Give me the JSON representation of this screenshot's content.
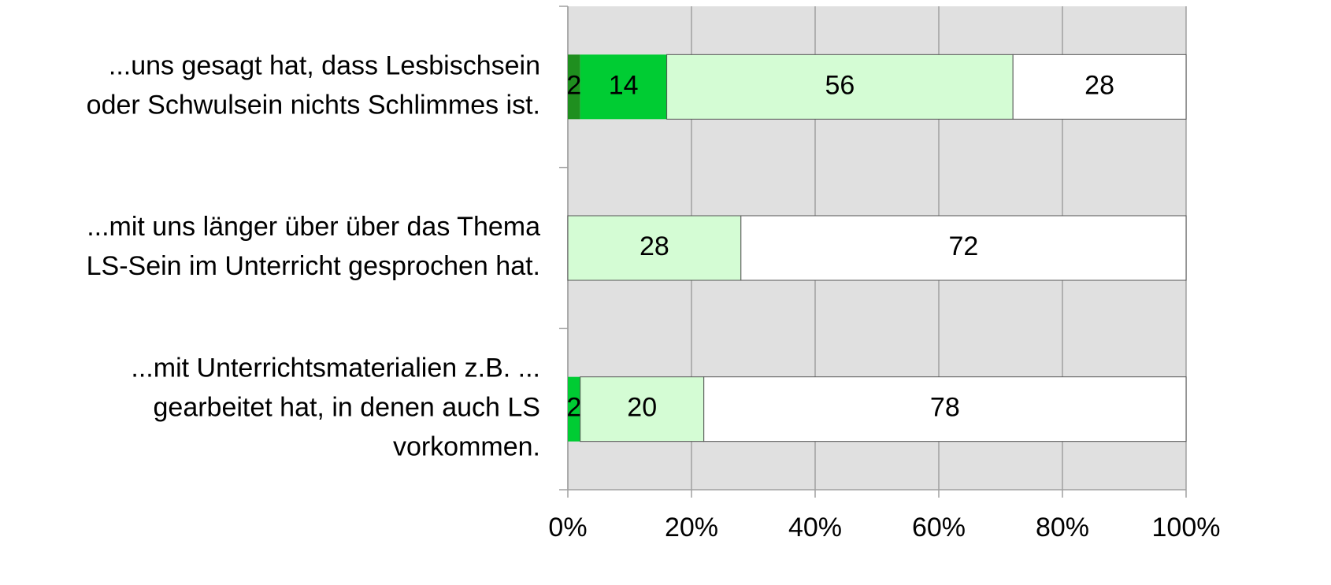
{
  "chart_data": {
    "type": "stacked_barh",
    "categories": [
      "...uns gesagt hat, dass Lesbischsein\noder Schwulsein nichts Schlimmes ist.",
      "...mit uns länger über über das Thema\nLS-Sein im Unterricht gesprochen hat.",
      "...mit Unterrichtsmaterialien z.B. ...\ngearbeitet hat, in denen auch LS\nvorkommen."
    ],
    "series": [
      {
        "color": "#1f8f1f",
        "values": [
          2,
          0,
          0
        ]
      },
      {
        "color": "#00cc33",
        "values": [
          14,
          0,
          2
        ]
      },
      {
        "color": "#d4fcd4",
        "values": [
          56,
          28,
          20
        ]
      },
      {
        "color": "#ffffff",
        "values": [
          28,
          72,
          78
        ]
      }
    ],
    "xlim": [
      0,
      100
    ],
    "xticks": [
      {
        "value": 0,
        "label": "0%"
      },
      {
        "value": 20,
        "label": "20%"
      },
      {
        "value": 40,
        "label": "40%"
      },
      {
        "value": 60,
        "label": "60%"
      },
      {
        "value": 80,
        "label": "80%"
      },
      {
        "value": 100,
        "label": "100%"
      }
    ],
    "grid": true
  }
}
